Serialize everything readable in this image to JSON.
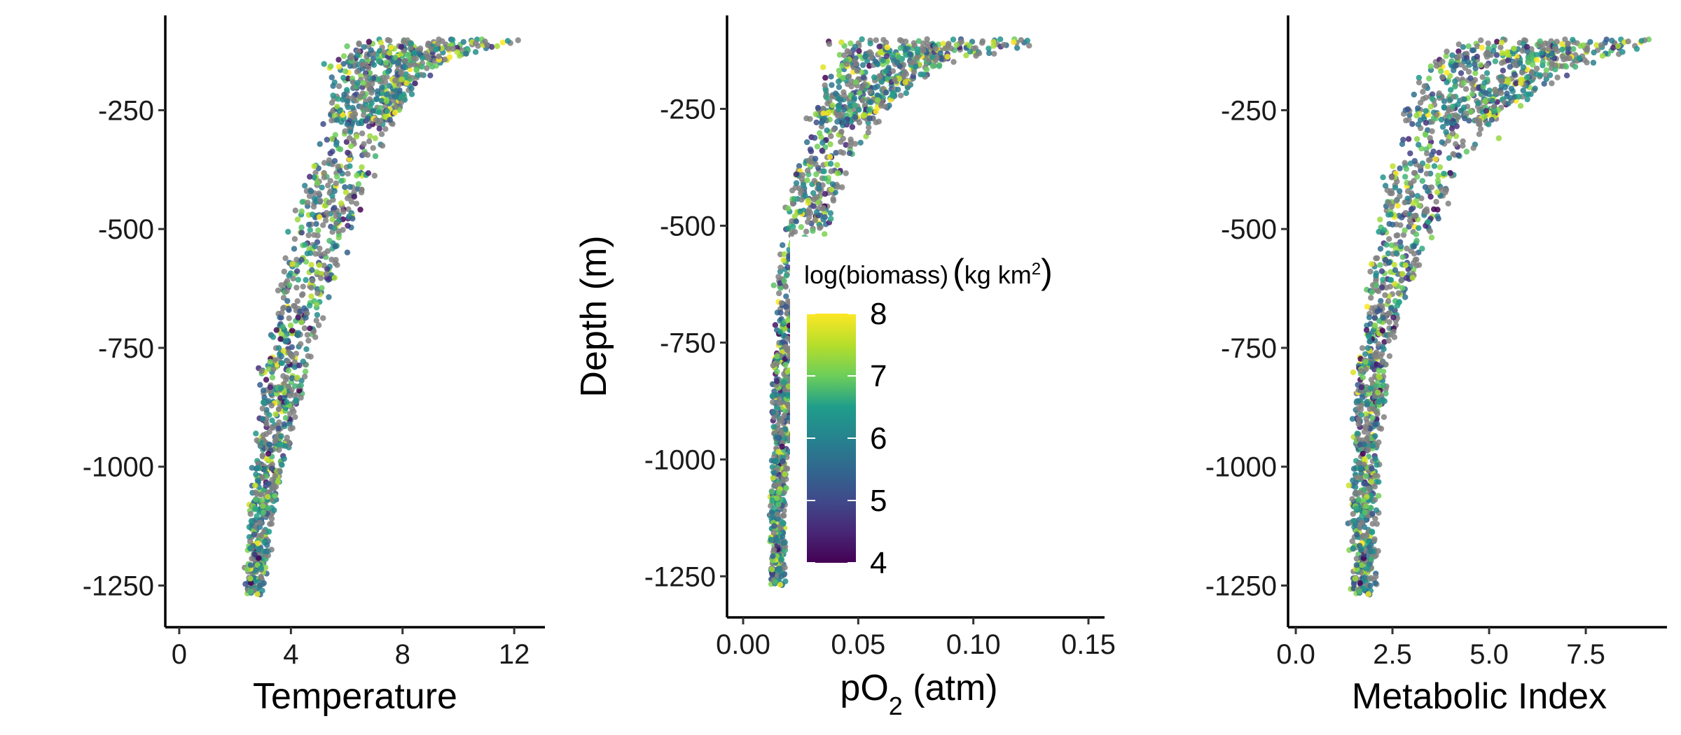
{
  "chart_data": [
    {
      "type": "scatter",
      "xlabel": "Temperature",
      "ylabel": "",
      "xlim": [
        -0.5,
        13.1
      ],
      "ylim": [
        -1320,
        -80
      ],
      "xticks": [
        0,
        4,
        8,
        12
      ],
      "xtick_labels": [
        "0",
        "4",
        "8",
        "12"
      ],
      "yticks": [
        -250,
        -500,
        -750,
        -1000,
        -1250
      ],
      "ytick_labels": [
        "-250",
        "-500",
        "-750",
        "-1000",
        "-1250"
      ],
      "profile_x_at_depth": {
        "depth": [
          -110,
          -150,
          -250,
          -375,
          -500,
          -625,
          -750,
          -875,
          -1000,
          -1125,
          -1250
        ],
        "center": [
          9.0,
          7.5,
          6.6,
          5.8,
          5.1,
          4.5,
          4.0,
          3.6,
          3.2,
          2.9,
          2.7
        ],
        "half_width": [
          2.6,
          1.6,
          1.2,
          1.1,
          1.0,
          0.9,
          0.8,
          0.65,
          0.5,
          0.4,
          0.3
        ]
      }
    },
    {
      "type": "scatter",
      "xlabel": "pO2 (atm)",
      "xlabel_main": "pO",
      "xlabel_sub": "2",
      "xlabel_rest": " (atm)",
      "ylabel": "Depth (m)",
      "xlim": [
        -0.007,
        0.157
      ],
      "ylim": [
        -1320,
        -80
      ],
      "xticks": [
        0,
        0.05,
        0.1,
        0.15
      ],
      "xtick_labels": [
        "0.00",
        "0.05",
        "0.10",
        "0.15"
      ],
      "yticks": [
        -250,
        -500,
        -750,
        -1000,
        -1250
      ],
      "ytick_labels": [
        "-250",
        "-500",
        "-750",
        "-1000",
        "-1250"
      ],
      "profile_x_at_depth": {
        "depth": [
          -110,
          -150,
          -250,
          -375,
          -500,
          -625,
          -750,
          -875,
          -1000,
          -1125,
          -1250
        ],
        "center": [
          0.085,
          0.065,
          0.045,
          0.034,
          0.027,
          0.022,
          0.019,
          0.017,
          0.016,
          0.015,
          0.015
        ],
        "half_width": [
          0.04,
          0.022,
          0.014,
          0.011,
          0.009,
          0.007,
          0.005,
          0.004,
          0.003,
          0.003,
          0.003
        ]
      }
    },
    {
      "type": "scatter",
      "xlabel": "Metabolic Index",
      "ylabel": "",
      "xlim": [
        -0.2,
        9.6
      ],
      "ylim": [
        -1320,
        -80
      ],
      "xticks": [
        0,
        2.5,
        5,
        7.5
      ],
      "xtick_labels": [
        "0.0",
        "2.5",
        "5.0",
        "7.5"
      ],
      "yticks": [
        -250,
        -500,
        -750,
        -1000,
        -1250
      ],
      "ytick_labels": [
        "-250",
        "-500",
        "-750",
        "-1000",
        "-1250"
      ],
      "profile_x_at_depth": {
        "depth": [
          -110,
          -150,
          -250,
          -375,
          -500,
          -625,
          -750,
          -875,
          -1000,
          -1125,
          -1250
        ],
        "center": [
          6.8,
          5.5,
          4.2,
          3.3,
          2.8,
          2.4,
          2.1,
          1.9,
          1.8,
          1.75,
          1.75
        ],
        "half_width": [
          2.4,
          1.8,
          1.2,
          0.9,
          0.7,
          0.5,
          0.4,
          0.35,
          0.3,
          0.3,
          0.3
        ]
      }
    }
  ],
  "legend": {
    "title_main": "log(biomass)",
    "title_unit": "kg km",
    "title_sup": "2",
    "range": [
      4,
      8
    ],
    "breaks": [
      4,
      5,
      6,
      7,
      8
    ],
    "break_labels": [
      "4",
      "5",
      "6",
      "7",
      "8"
    ],
    "missing_color": "#808080",
    "colorscale": [
      "#440154",
      "#3b528b",
      "#21918c",
      "#5ec962",
      "#fde725"
    ]
  }
}
